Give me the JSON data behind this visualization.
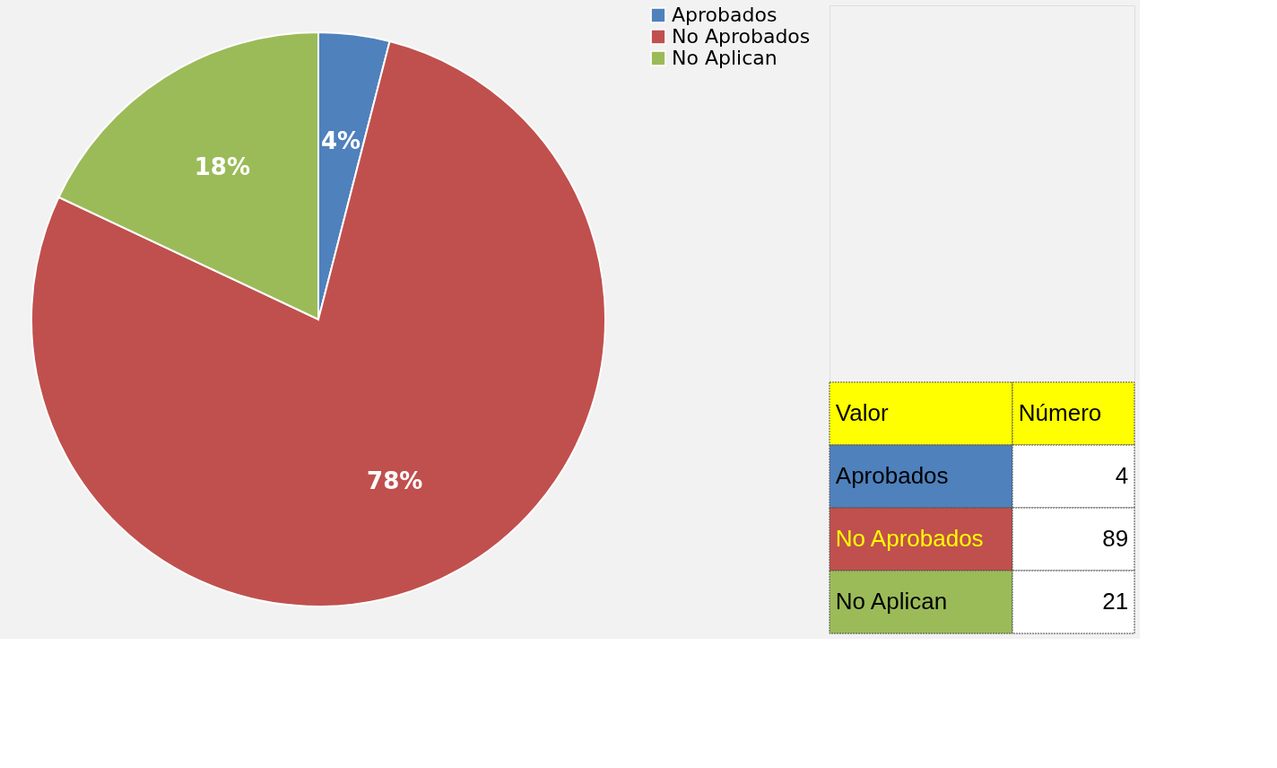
{
  "chart_data": {
    "type": "pie",
    "categories": [
      "Aprobados",
      "No Aprobados",
      "No Aplican"
    ],
    "values": [
      4,
      78,
      18
    ],
    "colors": [
      "#4f81bd",
      "#c0504d",
      "#9bbb59"
    ],
    "value_labels": [
      "4%",
      "78%",
      "18%"
    ],
    "legend": "right",
    "annotations": [
      "Valor",
      "Número",
      "4",
      "89",
      "21"
    ]
  }
}
